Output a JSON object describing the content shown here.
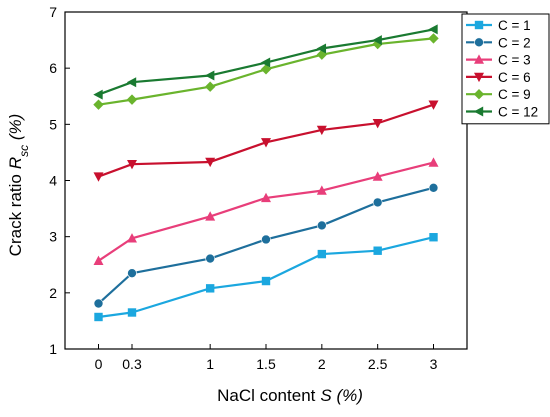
{
  "chart_data": {
    "type": "line",
    "x": [
      0,
      0.3,
      1,
      1.5,
      2,
      2.5,
      3
    ],
    "x_ticks": [
      "0",
      "0.3",
      "1",
      "1.5",
      "2",
      "2.5",
      "3"
    ],
    "y_ticks": [
      "1",
      "2",
      "3",
      "4",
      "5",
      "6",
      "7"
    ],
    "ylim": [
      1,
      7
    ],
    "xlabel": "NaCl content",
    "xlabel_symbol": "S",
    "xlabel_unit": " (%)",
    "ylabel": "Crack ratio",
    "ylabel_symbol": "R",
    "ylabel_subscript": "sc",
    "ylabel_unit": " (%)",
    "legend_position": "top-right",
    "grid": false,
    "series": [
      {
        "name": "C = 1",
        "color": "#1ba7df",
        "marker": "square",
        "values": [
          1.57,
          1.65,
          2.08,
          2.21,
          2.69,
          2.75,
          2.99
        ]
      },
      {
        "name": "C = 2",
        "color": "#1e6f9c",
        "marker": "circle",
        "values": [
          1.81,
          2.35,
          2.61,
          2.95,
          3.2,
          3.61,
          3.87
        ]
      },
      {
        "name": "C = 3",
        "color": "#e83e7a",
        "marker": "triangle-up",
        "values": [
          2.57,
          2.97,
          3.36,
          3.69,
          3.82,
          4.07,
          4.32
        ]
      },
      {
        "name": "C = 6",
        "color": "#c8102e",
        "marker": "triangle-down",
        "values": [
          4.07,
          4.29,
          4.33,
          4.68,
          4.9,
          5.02,
          5.35
        ]
      },
      {
        "name": "C = 9",
        "color": "#6ab42d",
        "marker": "diamond",
        "values": [
          5.35,
          5.44,
          5.67,
          5.98,
          6.24,
          6.43,
          6.53
        ]
      },
      {
        "name": "C = 12",
        "color": "#1a7a31",
        "marker": "triangle-left",
        "values": [
          5.53,
          5.75,
          5.87,
          6.1,
          6.35,
          6.5,
          6.69
        ]
      }
    ]
  }
}
